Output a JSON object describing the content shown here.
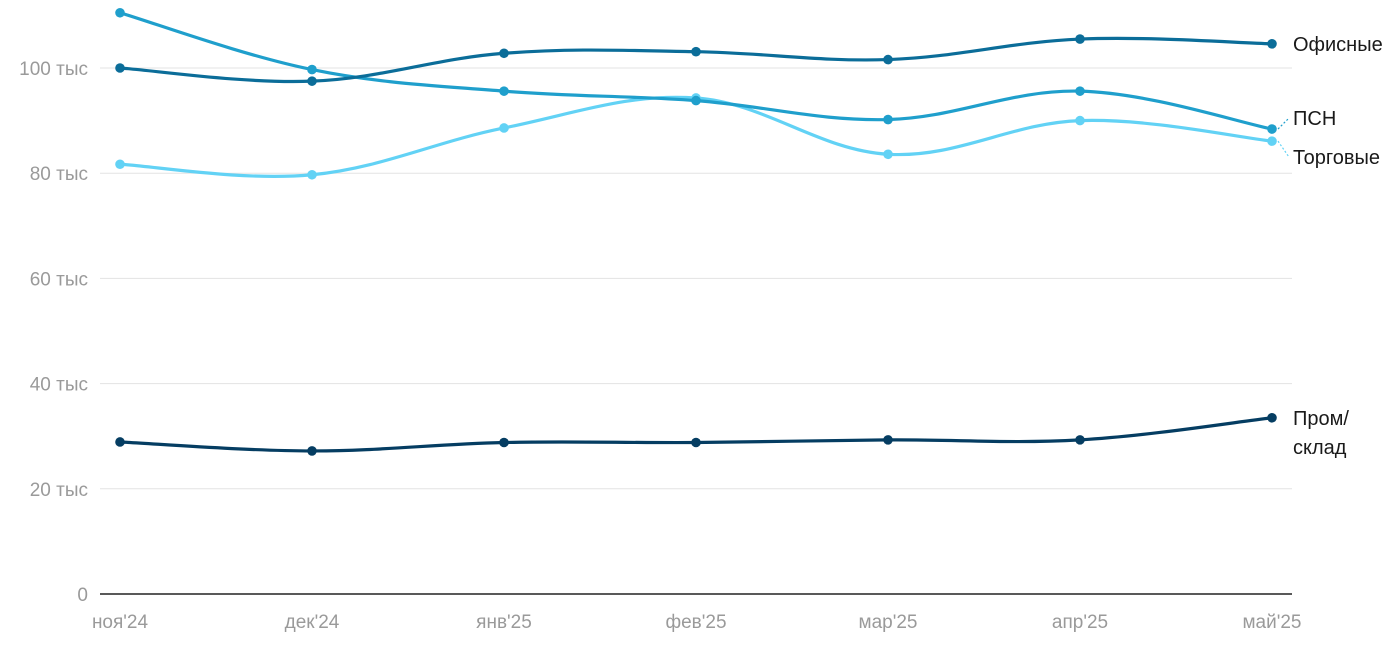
{
  "chart_data": {
    "type": "line",
    "categories": [
      "ноя'24",
      "дек'24",
      "янв'25",
      "фев'25",
      "мар'25",
      "апр'25",
      "май'25"
    ],
    "y_ticks": [
      "0",
      "20 тыс",
      "40 тыс",
      "60 тыс",
      "80 тыс",
      "100 тыс"
    ],
    "ylim": [
      0,
      110000
    ],
    "grid": true,
    "legend": "inline-right",
    "series": [
      {
        "name": "Офисные",
        "color": "#0b6d99",
        "values": [
          100000,
          97500,
          102800,
          103100,
          101600,
          105500,
          104600
        ]
      },
      {
        "name": "ПСН",
        "color": "#1f9fcc",
        "values": [
          110500,
          99700,
          95600,
          93800,
          90200,
          95600,
          88400
        ]
      },
      {
        "name": "Торговые",
        "color": "#62d2f5",
        "values": [
          81700,
          79700,
          88600,
          94300,
          83600,
          90000,
          86100
        ]
      },
      {
        "name": "Пром/ склад",
        "label_lines": [
          "Пром/",
          "склад"
        ],
        "color": "#053d62",
        "values": [
          28900,
          27200,
          28800,
          28800,
          29300,
          29300,
          33500
        ]
      }
    ]
  }
}
